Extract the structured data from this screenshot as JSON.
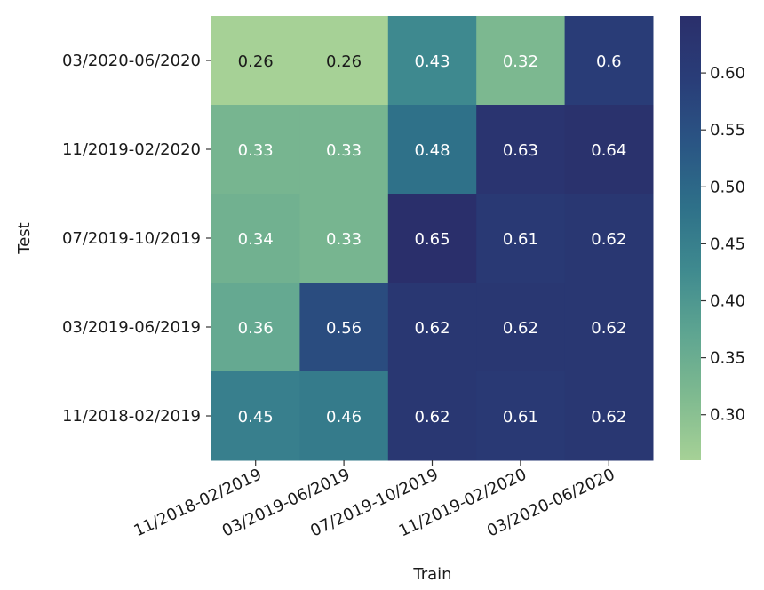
{
  "chart_data": {
    "type": "heatmap",
    "xlabel": "Train",
    "ylabel": "Test",
    "x_categories": [
      "11/2018-02/2019",
      "03/2019-06/2019",
      "07/2019-10/2019",
      "11/2019-02/2020",
      "03/2020-06/2020"
    ],
    "y_categories": [
      "03/2020-06/2020",
      "11/2019-02/2020",
      "07/2019-10/2019",
      "03/2019-06/2019",
      "11/2018-02/2019"
    ],
    "values": [
      [
        0.26,
        0.26,
        0.43,
        0.32,
        0.6
      ],
      [
        0.33,
        0.33,
        0.48,
        0.63,
        0.64
      ],
      [
        0.34,
        0.33,
        0.65,
        0.61,
        0.62
      ],
      [
        0.36,
        0.56,
        0.62,
        0.62,
        0.62
      ],
      [
        0.45,
        0.46,
        0.62,
        0.61,
        0.62
      ]
    ],
    "cell_labels": [
      [
        "0.26",
        "0.26",
        "0.43",
        "0.32",
        "0.6"
      ],
      [
        "0.33",
        "0.33",
        "0.48",
        "0.63",
        "0.64"
      ],
      [
        "0.34",
        "0.33",
        "0.65",
        "0.61",
        "0.62"
      ],
      [
        "0.36",
        "0.56",
        "0.62",
        "0.62",
        "0.62"
      ],
      [
        "0.45",
        "0.46",
        "0.62",
        "0.61",
        "0.62"
      ]
    ],
    "colorbar": {
      "vmin": 0.26,
      "vmax": 0.65,
      "ticks": [
        0.3,
        0.35,
        0.4,
        0.45,
        0.5,
        0.55,
        0.6
      ],
      "tick_labels": [
        "0.30",
        "0.35",
        "0.40",
        "0.45",
        "0.50",
        "0.55",
        "0.60"
      ],
      "colormap": "crest",
      "colors": [
        "#a6d196",
        "#7fba90",
        "#5ea591",
        "#3f8a8f",
        "#2e7089",
        "#2a5584",
        "#293d78",
        "#2a2f6b"
      ]
    },
    "text_color_light": "#ffffff",
    "text_color_dark": "#1a1a1a"
  }
}
